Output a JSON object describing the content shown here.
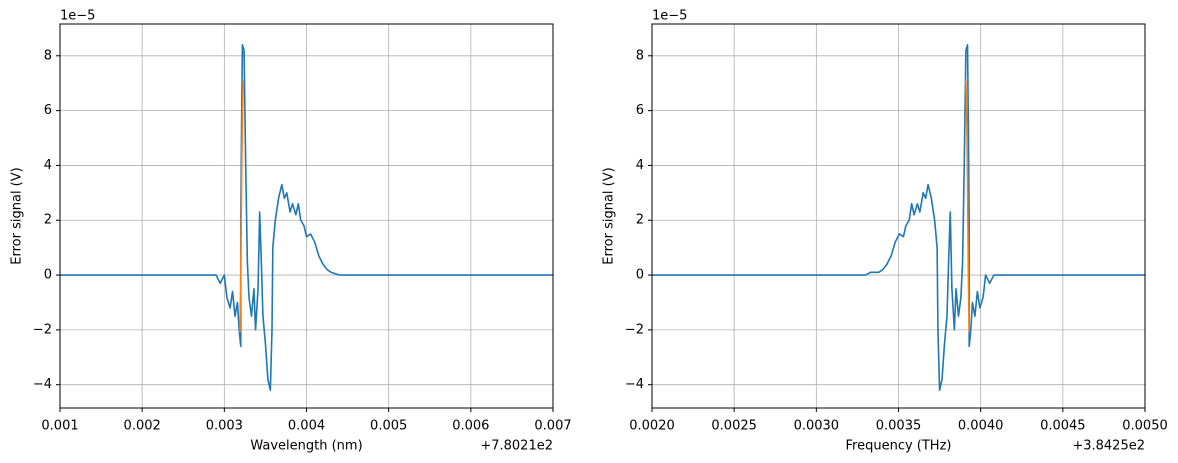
{
  "chart_data": [
    {
      "type": "line",
      "xlabel": "Wavelength (nm)",
      "ylabel": "Error signal (V)",
      "x_offset_text": "+7.8021e2",
      "y_offset_text": "1e−5",
      "xlim": [
        0.001,
        0.007
      ],
      "ylim": [
        -4.85,
        9.16
      ],
      "xticks": [
        0.001,
        0.002,
        0.003,
        0.004,
        0.005,
        0.006,
        0.007
      ],
      "yticks": [
        {
          "value": -4,
          "label": "−4"
        },
        {
          "value": -2,
          "label": "−2"
        },
        0,
        2,
        4,
        6,
        8
      ],
      "grid": true,
      "series": [
        {
          "color": "#1f77b4",
          "x": [
            0.001,
            0.0015,
            0.002,
            0.0025,
            0.0029,
            0.00295,
            0.003,
            0.00303,
            0.00307,
            0.0031,
            0.00313,
            0.00316,
            0.00318,
            0.0032,
            0.0032,
            0.00321,
            0.00322,
            0.00324,
            0.00326,
            0.00328,
            0.0033,
            0.00333,
            0.00336,
            0.00338,
            0.00341,
            0.00343,
            0.00345,
            0.00347,
            0.0035,
            0.00353,
            0.00356,
            0.00358,
            0.00359,
            0.00362,
            0.00366,
            0.0037,
            0.00373,
            0.00376,
            0.0038,
            0.00383,
            0.00387,
            0.0039,
            0.00393,
            0.00397,
            0.004,
            0.00405,
            0.0041,
            0.00415,
            0.0042,
            0.00425,
            0.0043,
            0.0044,
            0.005,
            0.006,
            0.007
          ],
          "values": [
            0,
            0,
            0,
            0,
            0,
            -0.3,
            0,
            -0.8,
            -1.2,
            -0.6,
            -1.5,
            -1.0,
            -2.0,
            -2.6,
            2,
            5.5,
            8.4,
            8.2,
            4,
            0.5,
            -0.8,
            -1.5,
            -0.5,
            -2.0,
            -0.5,
            2.3,
            0.5,
            -1.5,
            -2.5,
            -3.8,
            -4.2,
            -2,
            1.0,
            2.0,
            2.8,
            3.3,
            2.8,
            3.0,
            2.3,
            2.6,
            2.2,
            2.6,
            2.0,
            1.8,
            1.4,
            1.5,
            1.2,
            0.7,
            0.4,
            0.2,
            0.1,
            0,
            0,
            0,
            0
          ]
        },
        {
          "color": "#ff7f0e",
          "x": [
            0.00319,
            0.0032,
            0.00321,
            0.00322,
            0.00323
          ],
          "values": [
            -2.1,
            0,
            3.5,
            5.8,
            7.1
          ]
        }
      ]
    },
    {
      "type": "line",
      "xlabel": "Frequency (THz)",
      "ylabel": "Error signal (V)",
      "x_offset_text": "+3.8425e2",
      "y_offset_text": "1e−5",
      "xlim": [
        0.002,
        0.005
      ],
      "ylim": [
        -4.85,
        9.16
      ],
      "xticks": [
        {
          "value": 0.002,
          "label": "0.0020"
        },
        {
          "value": 0.0025,
          "label": "0.0025"
        },
        {
          "value": 0.003,
          "label": "0.0030"
        },
        {
          "value": 0.0035,
          "label": "0.0035"
        },
        {
          "value": 0.004,
          "label": "0.0040"
        },
        {
          "value": 0.0045,
          "label": "0.0045"
        },
        {
          "value": 0.005,
          "label": "0.0050"
        }
      ],
      "yticks": [
        {
          "value": -4,
          "label": "−4"
        },
        {
          "value": -2,
          "label": "−2"
        },
        0,
        2,
        4,
        6,
        8
      ],
      "grid": true,
      "series": [
        {
          "color": "#1f77b4",
          "x": [
            0.002,
            0.0025,
            0.003,
            0.0033,
            0.00333,
            0.00338,
            0.003405,
            0.00343,
            0.003455,
            0.00348,
            0.003505,
            0.00353,
            0.003545,
            0.003565,
            0.00358,
            0.003595,
            0.003615,
            0.00363,
            0.00365,
            0.003665,
            0.00368,
            0.0037,
            0.00372,
            0.003735,
            0.00374,
            0.00375,
            0.003765,
            0.00378,
            0.003795,
            0.003805,
            0.003815,
            0.003825,
            0.00384,
            0.00385,
            0.003865,
            0.00388,
            0.00389,
            0.0039,
            0.00391,
            0.00392,
            0.003925,
            0.00393,
            0.00393,
            0.00394,
            0.00395,
            0.003965,
            0.00398,
            0.003995,
            0.004015,
            0.00403,
            0.004055,
            0.00408,
            0.0045,
            0.005
          ],
          "values": [
            0,
            0,
            0,
            0,
            0.1,
            0.1,
            0.2,
            0.4,
            0.7,
            1.2,
            1.5,
            1.4,
            1.8,
            2.0,
            2.6,
            2.2,
            2.6,
            2.3,
            3.0,
            2.8,
            3.3,
            2.8,
            2.0,
            1.0,
            -2,
            -4.2,
            -3.8,
            -2.5,
            -1.5,
            0.5,
            2.3,
            -0.5,
            -2.0,
            -0.5,
            -1.5,
            -0.8,
            0.5,
            4,
            8.2,
            8.4,
            5.5,
            2,
            -2.6,
            -2.0,
            -1.0,
            -1.5,
            -0.6,
            -1.2,
            -0.8,
            0,
            -0.3,
            0,
            0,
            0
          ]
        },
        {
          "color": "#ff7f0e",
          "x": [
            0.00391,
            0.003915,
            0.00392,
            0.003925,
            0.00393
          ],
          "values": [
            7.1,
            5.8,
            3.5,
            0,
            -2.1
          ]
        }
      ]
    }
  ]
}
